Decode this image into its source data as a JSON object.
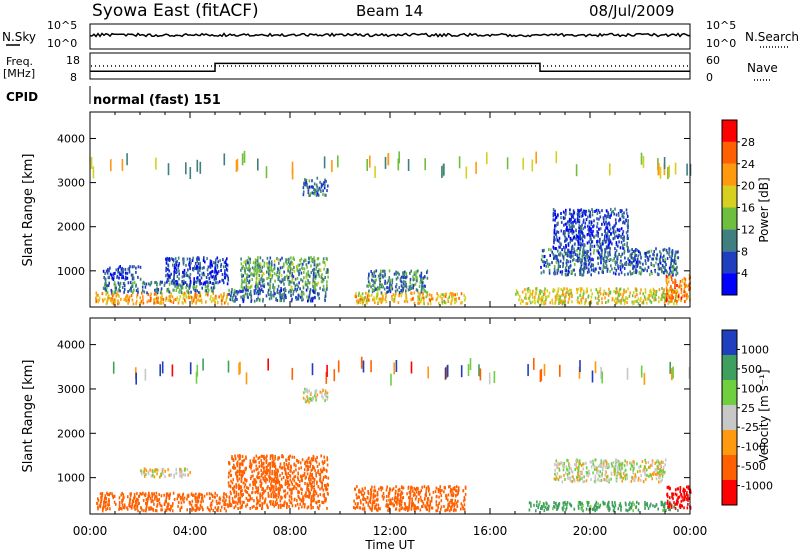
{
  "header": {
    "station": "Syowa East (fitACF)",
    "beam": "Beam 14",
    "date": "08/Jul/2009"
  },
  "noise_panel": {
    "left_label": "N.Sky",
    "right_label": "N.Search",
    "ticks": [
      "10^5",
      "10^0"
    ]
  },
  "freq_panel": {
    "left_label_1": "Freq.",
    "left_label_2": "[MHz]",
    "left_ticks": [
      "18",
      "8"
    ],
    "right_label": "Nave",
    "right_ticks": [
      "60",
      "0"
    ]
  },
  "cpid": {
    "label": "CPID",
    "text": "normal (fast) 151"
  },
  "colorbar_power": {
    "label": "Power [dB]",
    "colors": [
      "#0000ff",
      "#1f3fbf",
      "#3f7f7f",
      "#6fbf3f",
      "#d8d020",
      "#ff9a10",
      "#ff6000",
      "#ff0000"
    ],
    "tick_values": [
      "4",
      "8",
      "12",
      "16",
      "20",
      "24",
      "28"
    ]
  },
  "colorbar_velocity": {
    "label": "Velocity [m s⁻¹]",
    "colors": [
      "#ff0000",
      "#ff6000",
      "#ff9a10",
      "#c8c8c8",
      "#6fcf3f",
      "#3f9f5f",
      "#1f3fbf"
    ],
    "tick_values": [
      "-1000",
      "-500",
      "-100",
      "-25",
      "25",
      "100",
      "500",
      "1000"
    ]
  },
  "x_axis": {
    "label": "Time UT",
    "ticks": [
      "00:00",
      "04:00",
      "08:00",
      "12:00",
      "16:00",
      "20:00",
      "00:00"
    ]
  },
  "chart_data": {
    "type": "heatmap",
    "title": "Syowa East (fitACF)",
    "xlabel": "Time UT",
    "ylabel": "Slant Range [km]",
    "x_unit": "hours UT",
    "xlim": [
      0,
      24
    ],
    "ylim": [
      180,
      4600
    ],
    "y_ticks": [
      1000,
      2000,
      3000,
      4000
    ],
    "freq_mhz": [
      {
        "from_hour": 0,
        "to_hour": 5,
        "value": 11
      },
      {
        "from_hour": 5,
        "to_hour": 18,
        "value": 14
      },
      {
        "from_hour": 18,
        "to_hour": 24,
        "value": 11
      }
    ],
    "power_regions": [
      {
        "t0": 0.2,
        "t1": 5.5,
        "r0": 250,
        "r1": 500,
        "dB": 22
      },
      {
        "t0": 0.5,
        "t1": 5.0,
        "r0": 500,
        "r1": 750,
        "dB": 10
      },
      {
        "t0": 0.5,
        "t1": 2.0,
        "r0": 800,
        "r1": 1100,
        "dB": 6
      },
      {
        "t0": 3.0,
        "t1": 5.5,
        "r0": 700,
        "r1": 1300,
        "dB": 6
      },
      {
        "t0": 5.5,
        "t1": 9.5,
        "r0": 300,
        "r1": 600,
        "dB": 8
      },
      {
        "t0": 6.0,
        "t1": 9.5,
        "r0": 600,
        "r1": 1300,
        "dB": 12
      },
      {
        "t0": 8.5,
        "t1": 9.5,
        "r0": 2700,
        "r1": 3100,
        "dB": 8
      },
      {
        "t0": 10.5,
        "t1": 15.0,
        "r0": 250,
        "r1": 500,
        "dB": 20
      },
      {
        "t0": 11.0,
        "t1": 13.5,
        "r0": 500,
        "r1": 1000,
        "dB": 10
      },
      {
        "t0": 17.0,
        "t1": 23.5,
        "r0": 250,
        "r1": 600,
        "dB": 18
      },
      {
        "t0": 18.0,
        "t1": 23.5,
        "r0": 900,
        "r1": 1500,
        "dB": 8
      },
      {
        "t0": 18.5,
        "t1": 21.5,
        "r0": 1500,
        "r1": 2400,
        "dB": 6
      },
      {
        "t0": 23.0,
        "t1": 24.0,
        "r0": 300,
        "r1": 900,
        "dB": 24
      }
    ],
    "velocity_regions": [
      {
        "t0": 0.2,
        "t1": 5.5,
        "r0": 250,
        "r1": 650,
        "v": -200
      },
      {
        "t0": 2.0,
        "t1": 4.0,
        "r0": 1000,
        "r1": 1200,
        "v": -10
      },
      {
        "t0": 5.5,
        "t1": 9.5,
        "r0": 300,
        "r1": 1500,
        "v": -200
      },
      {
        "t0": 8.5,
        "t1": 9.5,
        "r0": 2700,
        "r1": 3000,
        "v": 0
      },
      {
        "t0": 10.5,
        "t1": 15.0,
        "r0": 250,
        "r1": 800,
        "v": -200
      },
      {
        "t0": 17.5,
        "t1": 23.5,
        "r0": 250,
        "r1": 450,
        "v": 150
      },
      {
        "t0": 18.5,
        "t1": 23.0,
        "r0": 900,
        "r1": 1400,
        "v": 10
      },
      {
        "t0": 23.0,
        "t1": 24.0,
        "r0": 300,
        "r1": 800,
        "v": -600
      }
    ]
  }
}
